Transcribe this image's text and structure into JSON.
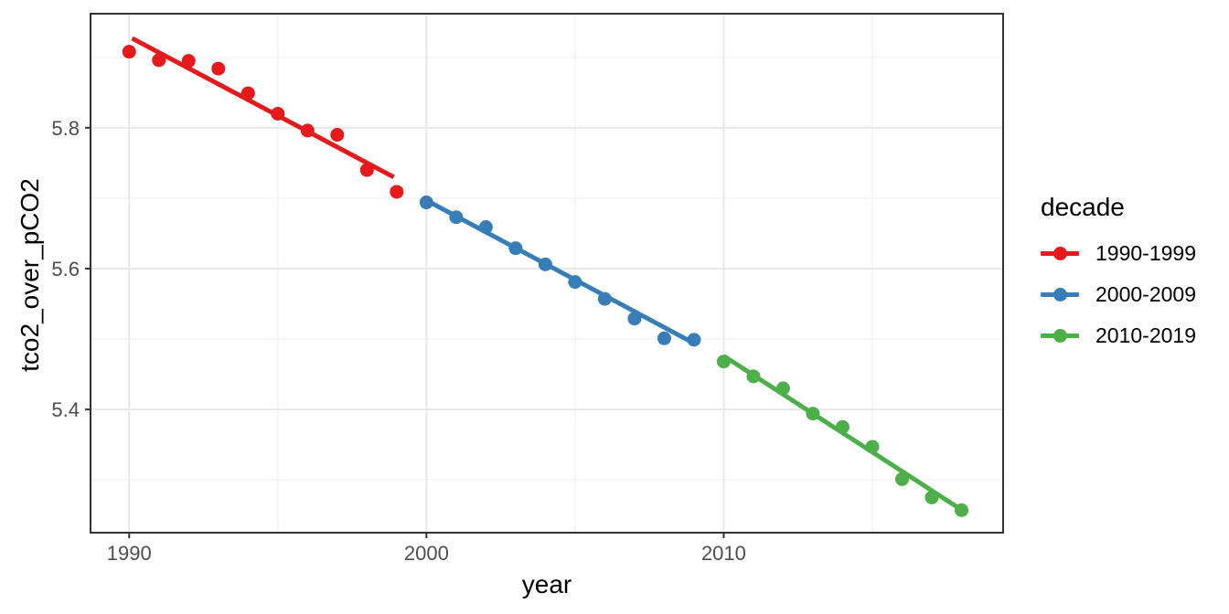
{
  "chart_data": {
    "type": "scatter",
    "title": "",
    "xlabel": "year",
    "ylabel": "tco2_over_pCO2",
    "x_domain": [
      1988.7,
      2019.4
    ],
    "y_domain": [
      5.225,
      5.962
    ],
    "grid": true,
    "x_ticks": {
      "major": [
        1990,
        2000,
        2010
      ],
      "minor": [
        1995,
        2005,
        2015
      ],
      "labels": [
        "1990",
        "2000",
        "2010"
      ]
    },
    "y_ticks": {
      "major": [
        5.4,
        5.6,
        5.8
      ],
      "minor": [
        5.3,
        5.5,
        5.7,
        5.9
      ],
      "labels": [
        "5.4",
        "5.6",
        "5.8"
      ]
    },
    "legend": {
      "title": "decade",
      "position": "right"
    },
    "series": [
      {
        "name": "1990-1999",
        "color": "#E41A1C",
        "x": [
          1990,
          1991,
          1992,
          1993,
          1994,
          1995,
          1996,
          1997,
          1998,
          1999
        ],
        "y": [
          5.908,
          5.896,
          5.895,
          5.884,
          5.849,
          5.82,
          5.796,
          5.79,
          5.74,
          5.709
        ],
        "trend": {
          "x1": 1990.1,
          "y1": 5.927,
          "x2": 1998.9,
          "y2": 5.73
        }
      },
      {
        "name": "2000-2009",
        "color": "#377EB8",
        "x": [
          2000,
          2001,
          2002,
          2003,
          2004,
          2005,
          2006,
          2007,
          2008,
          2009
        ],
        "y": [
          5.694,
          5.673,
          5.659,
          5.629,
          5.606,
          5.581,
          5.557,
          5.529,
          5.501,
          5.499
        ],
        "trend": {
          "x1": 2000.0,
          "y1": 5.697,
          "x2": 2009.0,
          "y2": 5.494
        }
      },
      {
        "name": "2010-2019",
        "color": "#4DAF4A",
        "x": [
          2010,
          2011,
          2012,
          2013,
          2014,
          2015,
          2016,
          2017,
          2018
        ],
        "y": [
          5.468,
          5.447,
          5.43,
          5.394,
          5.375,
          5.347,
          5.301,
          5.275,
          5.257
        ],
        "trend": {
          "x1": 2010.0,
          "y1": 5.476,
          "x2": 2018.2,
          "y2": 5.252
        }
      }
    ],
    "style": {
      "background": "#FFFFFF",
      "panel_background": "#FFFFFF",
      "panel_border": "#333333",
      "grid_major": "#E8E8E8",
      "grid_minor": "#F3F3F3",
      "tick_mark": "#333333",
      "tick_label_color": "#4D4D4D",
      "title_color": "#000000",
      "point_radius": 7.5,
      "trend_width": 5
    }
  }
}
